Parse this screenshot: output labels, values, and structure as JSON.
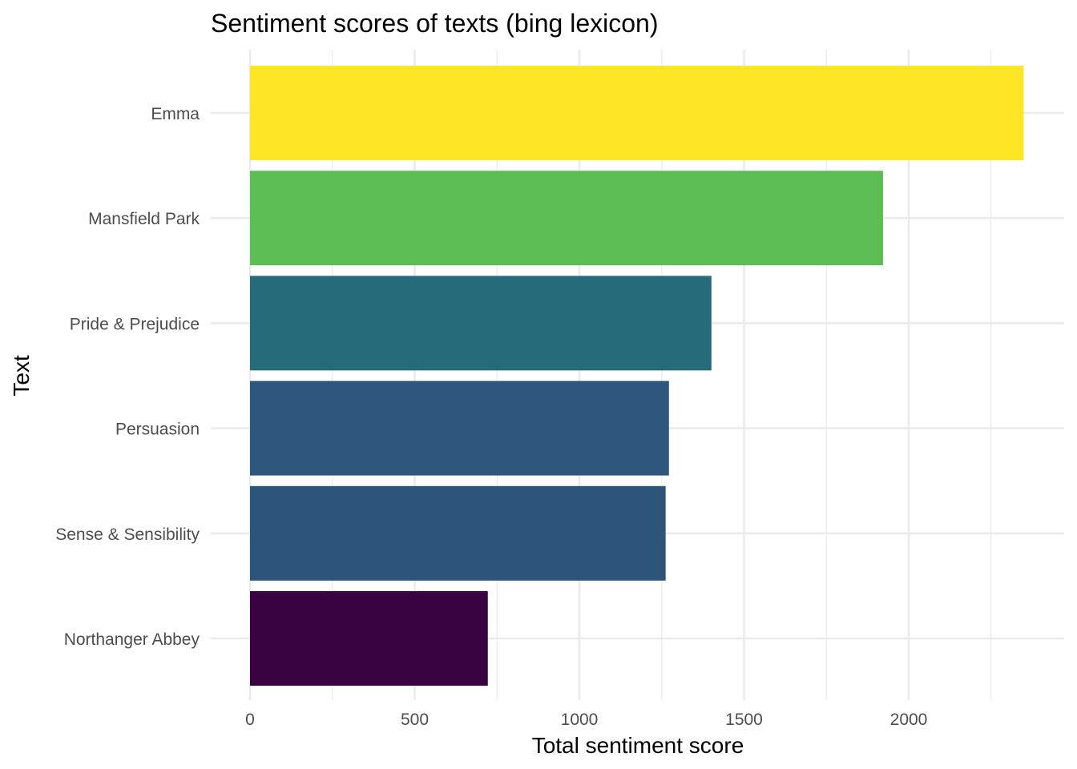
{
  "chart_data": {
    "type": "bar",
    "orientation": "horizontal",
    "title": "Sentiment scores of texts (bing lexicon)",
    "xlabel": "Total sentiment score",
    "ylabel": "Text",
    "xlim": [
      0,
      2350
    ],
    "xticks": [
      0,
      500,
      1000,
      1500,
      2000
    ],
    "xtick_labels": [
      "0",
      "500",
      "1000",
      "1500",
      "2000"
    ],
    "categories": [
      "Emma",
      "Mansfield Park",
      "Pride & Prejudice",
      "Persuasion",
      "Sense & Sensibility",
      "Northanger Abbey"
    ],
    "values": [
      2349,
      1922,
      1401,
      1272,
      1262,
      722
    ],
    "colors": [
      "#FDE725",
      "#5DBD55",
      "#256B79",
      "#2D577C",
      "#2D557C",
      "#380340"
    ],
    "color_scale": "viridis, by value",
    "grid": true,
    "legend": "none"
  }
}
